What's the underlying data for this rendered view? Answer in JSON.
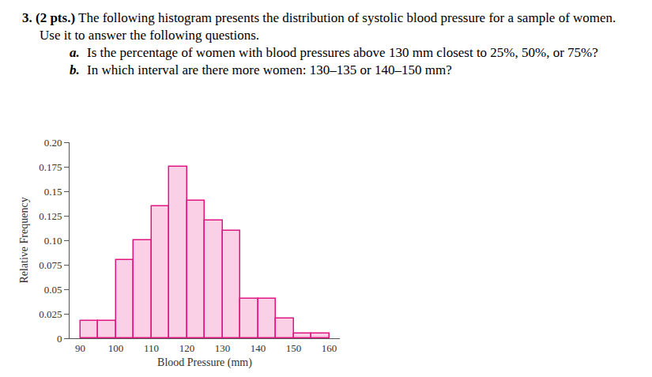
{
  "question": {
    "number": "3.",
    "points": "(2 pts.)",
    "text": "The following histogram presents the distribution of systolic blood pressure for a sample of women. Use it to answer the following questions.",
    "items": [
      {
        "label": "a.",
        "text": "Is the percentage of women with blood pressures above 130 mm closest to 25%, 50%, or 75%?"
      },
      {
        "label": "b.",
        "text": "In which interval are there more women: 130–135 or 140–150 mm?"
      }
    ]
  },
  "chart_data": {
    "type": "histogram",
    "x_label": "Blood Pressure (mm)",
    "y_label": "Relative Frequency",
    "bins": [
      90,
      95,
      100,
      105,
      110,
      115,
      120,
      125,
      130,
      135,
      140,
      145,
      150,
      155,
      160
    ],
    "values": [
      0.0175,
      0.0175,
      0.08,
      0.1,
      0.135,
      0.175,
      0.14,
      0.12,
      0.11,
      0.04,
      0.04,
      0.02,
      0.005,
      0.005
    ],
    "color": "#f9d0e6",
    "xlim": [
      87,
      163
    ],
    "xticks": [
      90,
      100,
      110,
      120,
      130,
      140,
      150,
      160
    ],
    "ylim": [
      0,
      0.2
    ],
    "yticks": [
      0,
      0.025,
      0.05,
      0.075,
      {
        "value": 0.1,
        "label": "0.10"
      },
      0.125,
      0.15,
      0.175,
      {
        "value": 0.2,
        "label": "0.20"
      }
    ],
    "grid": false
  }
}
